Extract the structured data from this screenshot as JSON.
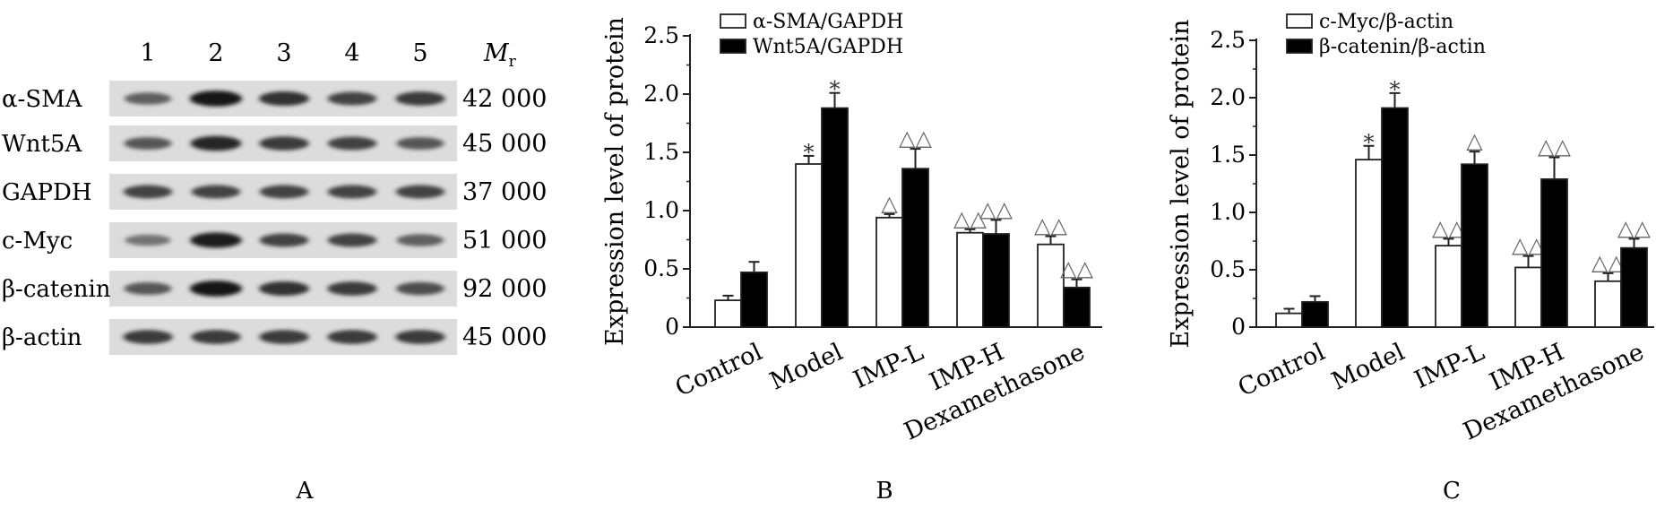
{
  "panel_a": {
    "letter": "A",
    "lanes": [
      "1",
      "2",
      "3",
      "4",
      "5"
    ],
    "mr_label": {
      "italic": "M",
      "sub": "r"
    },
    "rows": [
      {
        "protein": "α-SMA",
        "mw": "42 000",
        "intensity": [
          0.55,
          0.95,
          0.8,
          0.7,
          0.75
        ]
      },
      {
        "protein": "Wnt5A",
        "mw": "45 000",
        "intensity": [
          0.6,
          0.85,
          0.75,
          0.7,
          0.6
        ]
      },
      {
        "protein": "GAPDH",
        "mw": "37 000",
        "intensity": [
          0.7,
          0.7,
          0.7,
          0.7,
          0.7
        ]
      },
      {
        "protein": "c-Myc",
        "mw": "51 000",
        "intensity": [
          0.45,
          0.9,
          0.7,
          0.7,
          0.55
        ]
      },
      {
        "protein": "β-catenin",
        "mw": "92 000",
        "intensity": [
          0.6,
          0.95,
          0.8,
          0.75,
          0.65
        ]
      },
      {
        "protein": "β-actin",
        "mw": "45 000",
        "intensity": [
          0.75,
          0.75,
          0.75,
          0.75,
          0.75
        ]
      }
    ]
  },
  "chart_data": [
    {
      "type": "bar",
      "panel": "B",
      "categories": [
        "Control",
        "Model",
        "IMP-L",
        "IMP-H",
        "Dexamethasone"
      ],
      "ylabel": "Expression level of protein",
      "xlabel": "",
      "ylim": [
        0,
        2.5
      ],
      "yticks": [
        0,
        0.5,
        1.0,
        1.5,
        2.0,
        2.5
      ],
      "ytick_labels": [
        "0",
        "0.5",
        "1.0",
        "1.5",
        "2.0",
        "2.5"
      ],
      "grid": false,
      "legend_position": "top-left",
      "series": [
        {
          "name": "α-SMA/GAPDH",
          "color": "#ffffff",
          "values": [
            0.23,
            1.4,
            0.94,
            0.81,
            0.71
          ],
          "errors": [
            0.04,
            0.07,
            0.03,
            0.03,
            0.07
          ],
          "marks": [
            "",
            "*",
            "△",
            "△△",
            "△△"
          ]
        },
        {
          "name": "Wnt5A/GAPDH",
          "color": "#000000",
          "values": [
            0.47,
            1.88,
            1.36,
            0.8,
            0.34
          ],
          "errors": [
            0.09,
            0.13,
            0.17,
            0.12,
            0.07
          ],
          "marks": [
            "",
            "*",
            "△△",
            "△△",
            "△△"
          ]
        }
      ]
    },
    {
      "type": "bar",
      "panel": "C",
      "categories": [
        "Control",
        "Model",
        "IMP-L",
        "IMP-H",
        "Dexamethasone"
      ],
      "ylabel": "Expression level of protein",
      "xlabel": "",
      "ylim": [
        0,
        2.5
      ],
      "yticks": [
        0,
        0.5,
        1.0,
        1.5,
        2.0,
        2.5
      ],
      "ytick_labels": [
        "0",
        "0.5",
        "1.0",
        "1.5",
        "2.0",
        "2.5"
      ],
      "grid": false,
      "legend_position": "top-left",
      "series": [
        {
          "name": "c-Myc/β-actin",
          "color": "#ffffff",
          "values": [
            0.12,
            1.46,
            0.71,
            0.52,
            0.4
          ],
          "errors": [
            0.04,
            0.12,
            0.06,
            0.1,
            0.07
          ],
          "marks": [
            "",
            "*",
            "△△",
            "△△",
            "△△"
          ]
        },
        {
          "name": "β-catenin/β-actin",
          "color": "#000000",
          "values": [
            0.22,
            1.91,
            1.42,
            1.29,
            0.69
          ],
          "errors": [
            0.05,
            0.13,
            0.11,
            0.19,
            0.08
          ],
          "marks": [
            "",
            "*",
            "△",
            "△△",
            "△△"
          ]
        }
      ]
    }
  ]
}
